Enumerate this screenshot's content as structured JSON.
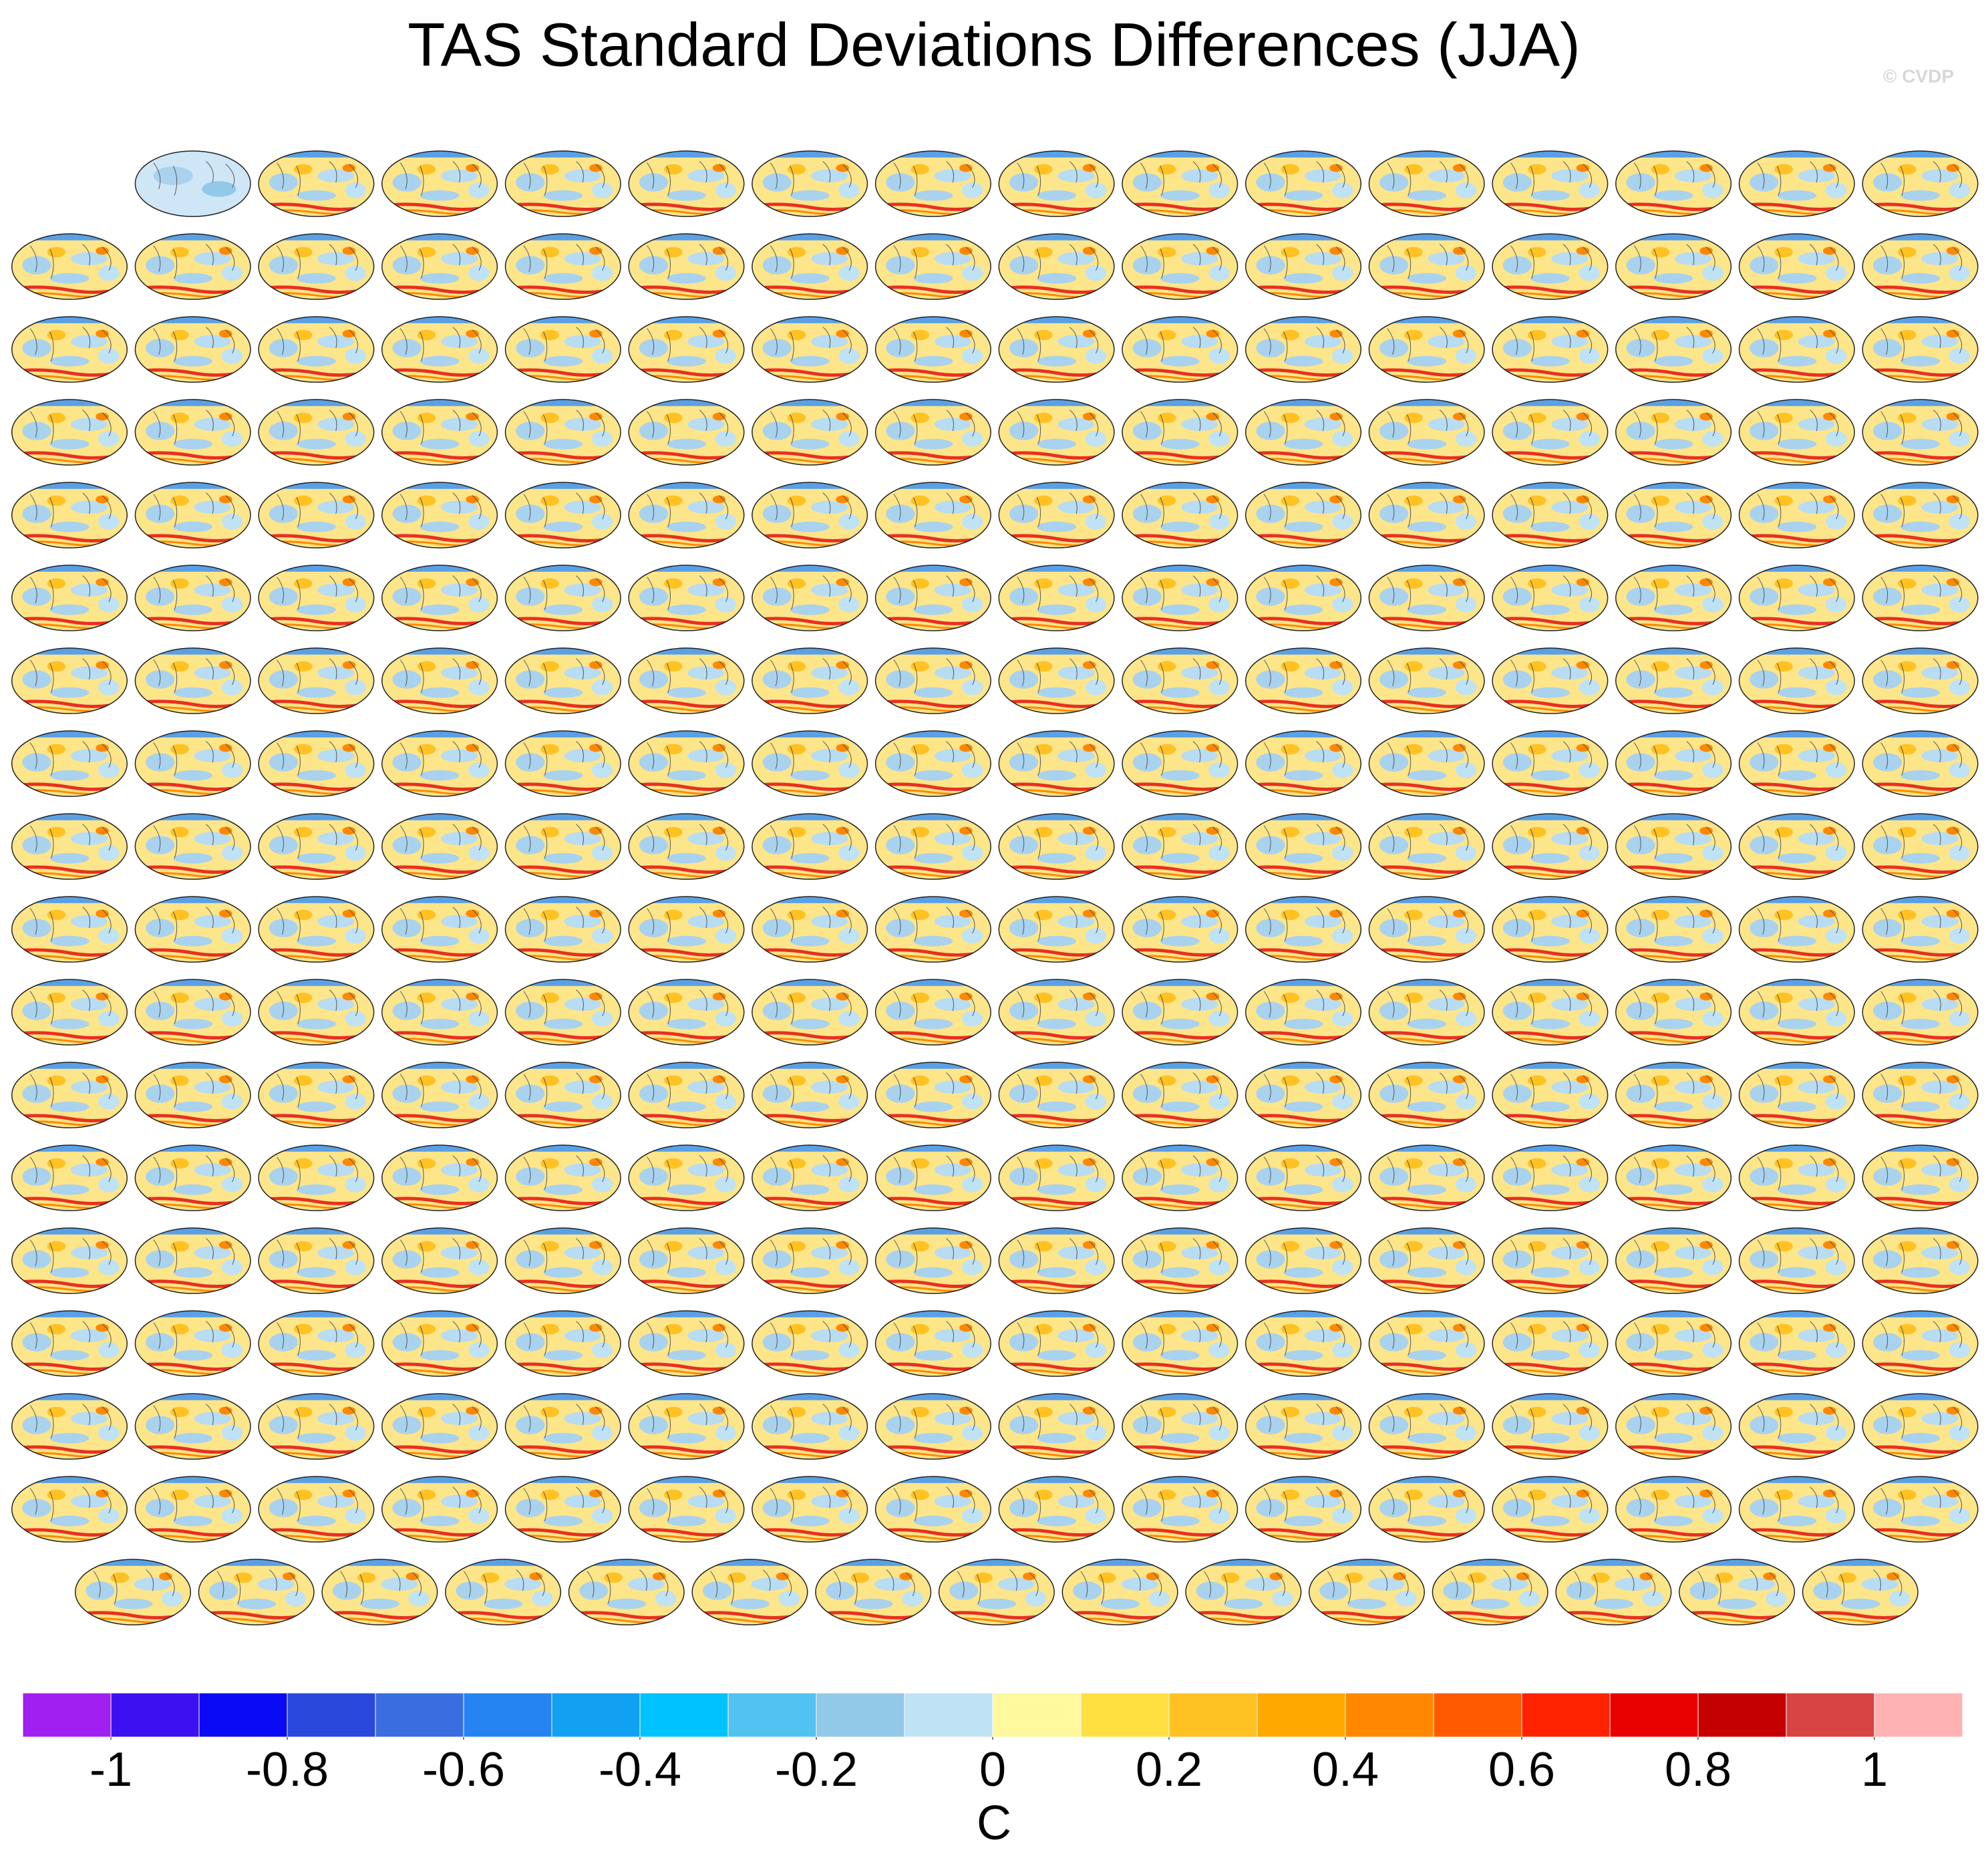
{
  "title": "TAS Standard Deviations Differences (JJA)",
  "watermark": "© CVDP",
  "chart_data": {
    "type": "colorbar",
    "xlim": [
      -1.1,
      1.1
    ],
    "bins": [
      -1.1,
      -1.0,
      -0.9,
      -0.8,
      -0.7,
      -0.6,
      -0.5,
      -0.4,
      -0.3,
      -0.2,
      -0.1,
      0,
      0.1,
      0.2,
      0.3,
      0.4,
      0.5,
      0.6,
      0.7,
      0.8,
      0.9,
      1.0,
      1.1
    ],
    "colors": [
      "#a020f0",
      "#3c10f0",
      "#0a0af5",
      "#2a48dc",
      "#3a6ee0",
      "#2584f2",
      "#12a0f2",
      "#00c2fc",
      "#52c2f0",
      "#92c8e8",
      "#bfe2f5",
      "#fff89c",
      "#ffe040",
      "#ffc222",
      "#ffa800",
      "#ff8800",
      "#ff5a00",
      "#ff2200",
      "#e80000",
      "#c40000",
      "#d84444",
      "#ffb2b2"
    ],
    "xticks": [
      -1,
      -0.8,
      -0.6,
      -0.4,
      -0.2,
      0,
      0.2,
      0.4,
      0.6,
      0.8,
      1
    ],
    "xlabel": "C"
  }
}
